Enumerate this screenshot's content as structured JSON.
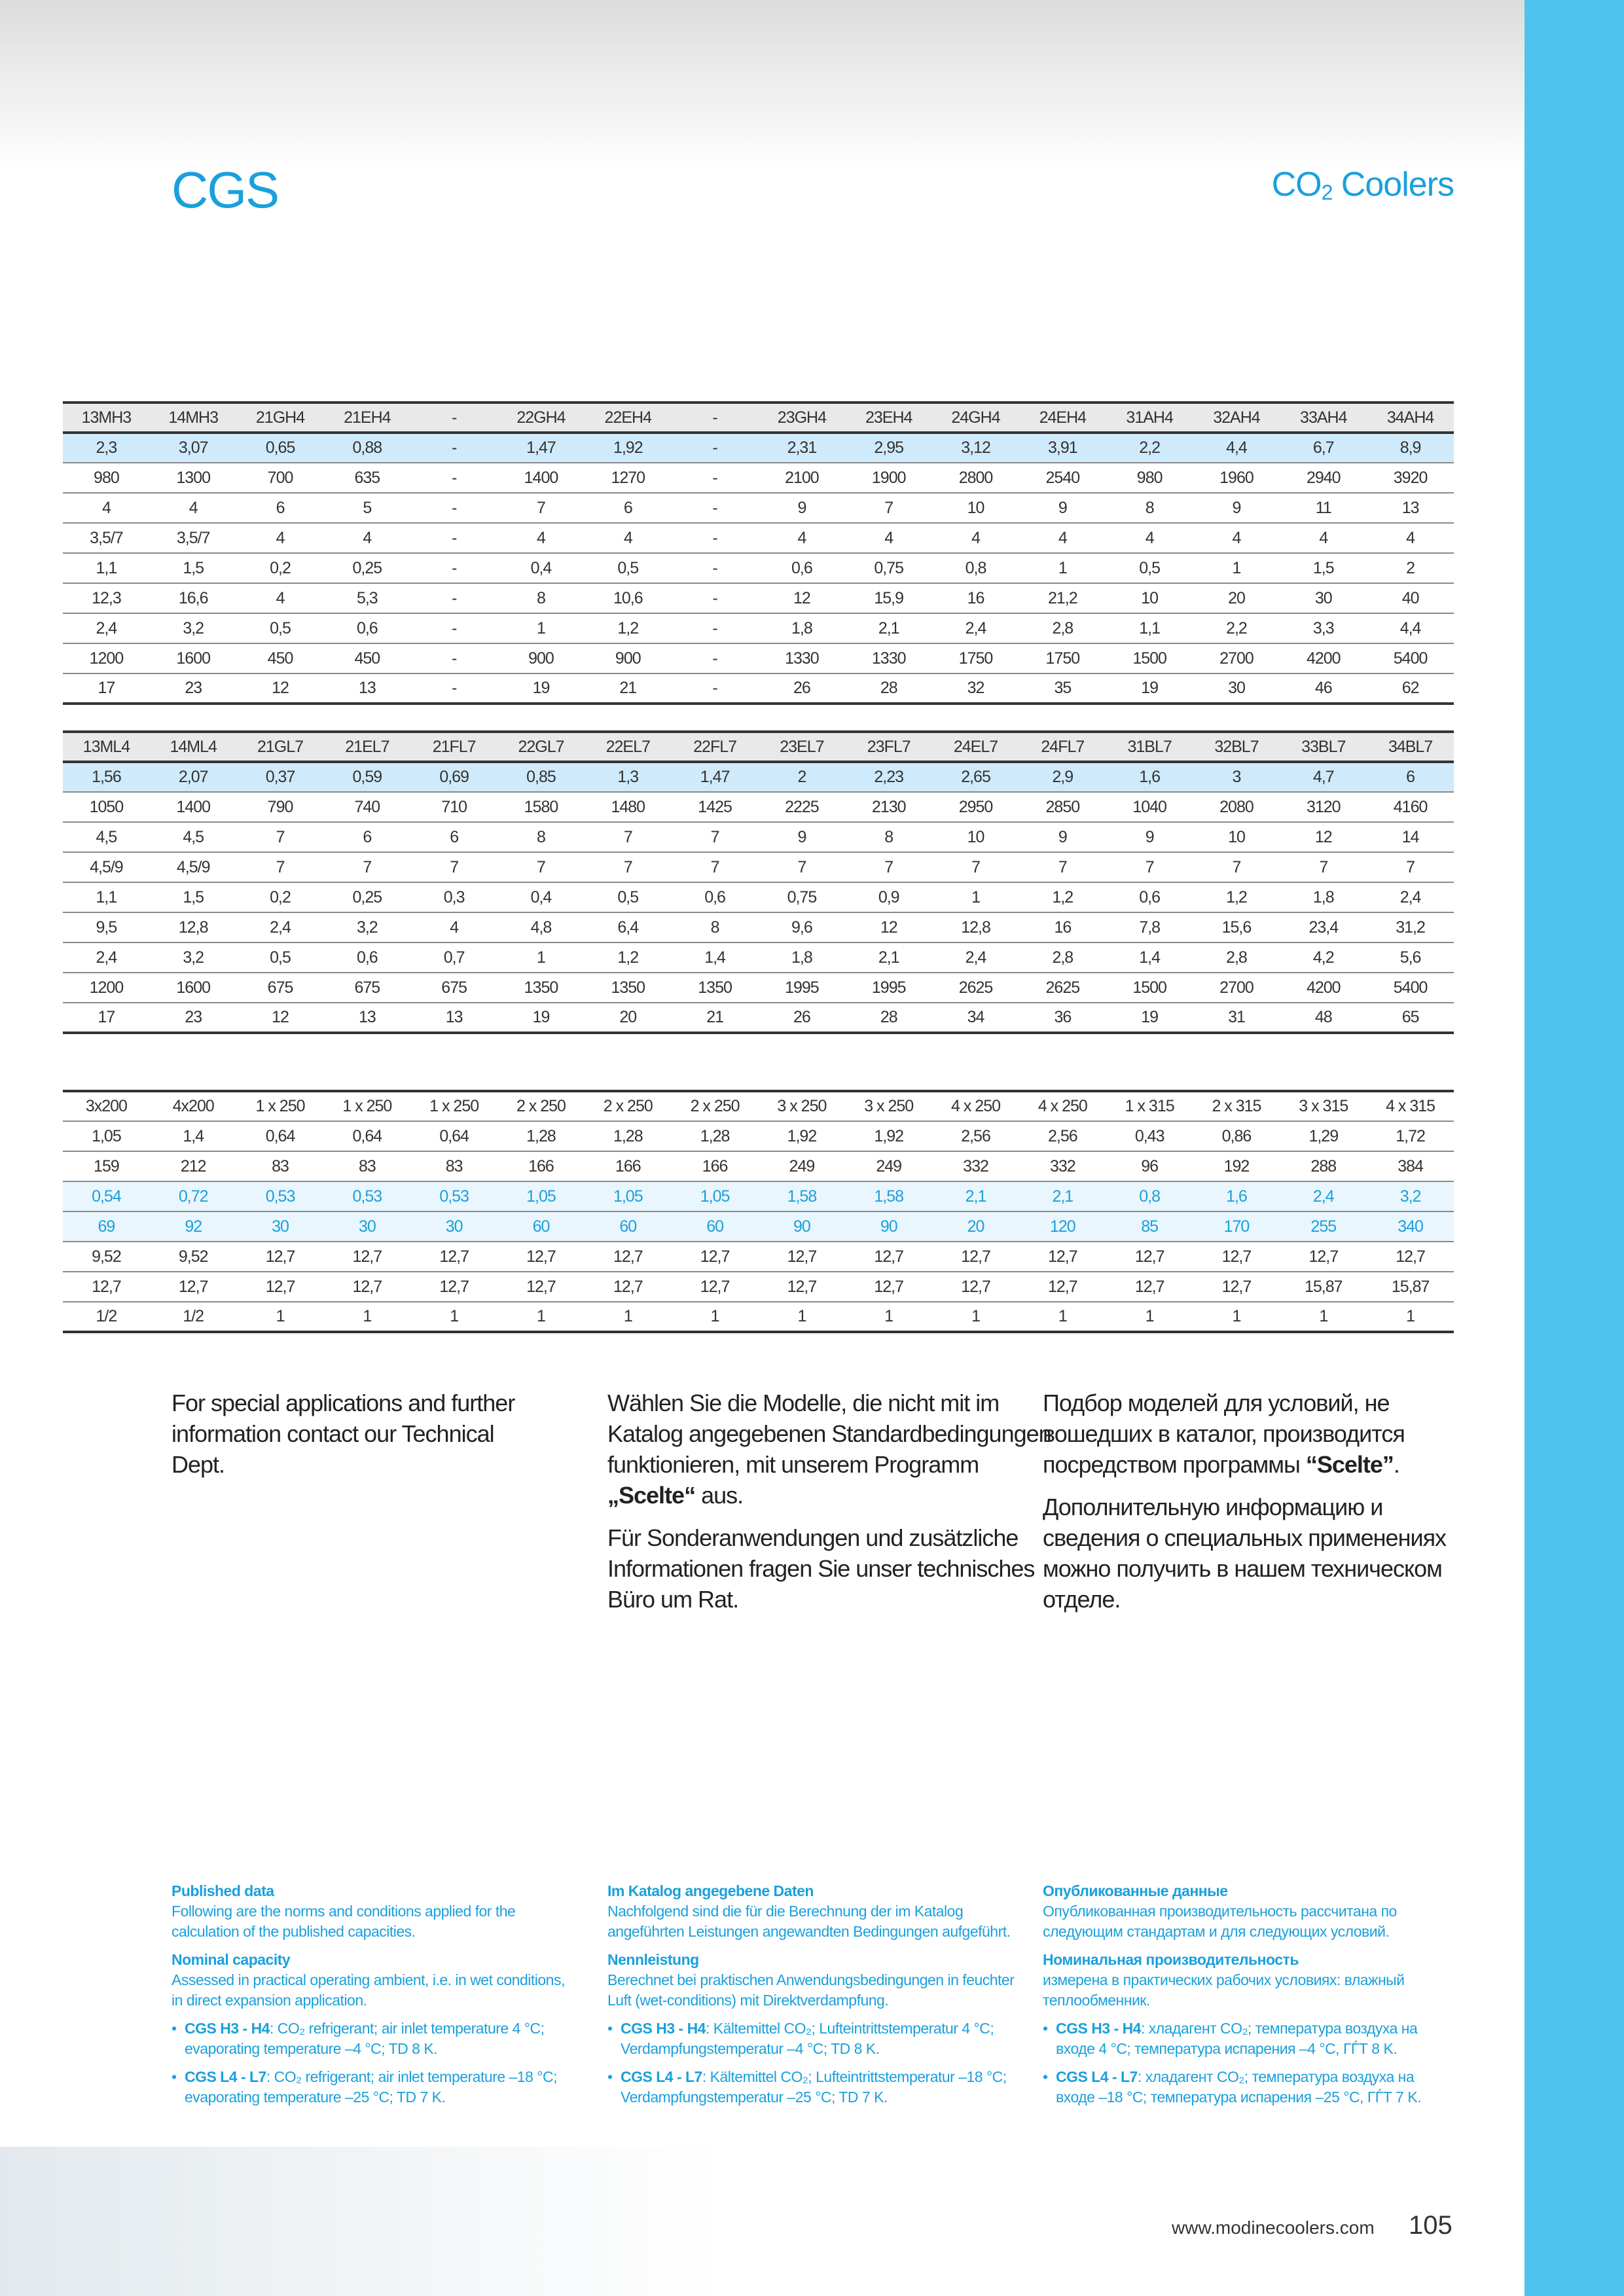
{
  "header": {
    "title": "CGS",
    "subtitle_main": "CO",
    "subtitle_sub": "2",
    "subtitle_rest": " Coolers"
  },
  "tables": [
    {
      "rows": [
        [
          "13MH3",
          "14MH3",
          "21GH4",
          "21EH4",
          "-",
          "22GH4",
          "22EH4",
          "-",
          "23GH4",
          "23EH4",
          "24GH4",
          "24EH4",
          "31AH4",
          "32AH4",
          "33AH4",
          "34AH4"
        ],
        [
          "2,3",
          "3,07",
          "0,65",
          "0,88",
          "-",
          "1,47",
          "1,92",
          "-",
          "2,31",
          "2,95",
          "3,12",
          "3,91",
          "2,2",
          "4,4",
          "6,7",
          "8,9"
        ],
        [
          "980",
          "1300",
          "700",
          "635",
          "-",
          "1400",
          "1270",
          "-",
          "2100",
          "1900",
          "2800",
          "2540",
          "980",
          "1960",
          "2940",
          "3920"
        ],
        [
          "4",
          "4",
          "6",
          "5",
          "-",
          "7",
          "6",
          "-",
          "9",
          "7",
          "10",
          "9",
          "8",
          "9",
          "11",
          "13"
        ],
        [
          "3,5/7",
          "3,5/7",
          "4",
          "4",
          "-",
          "4",
          "4",
          "-",
          "4",
          "4",
          "4",
          "4",
          "4",
          "4",
          "4",
          "4"
        ],
        [
          "1,1",
          "1,5",
          "0,2",
          "0,25",
          "-",
          "0,4",
          "0,5",
          "-",
          "0,6",
          "0,75",
          "0,8",
          "1",
          "0,5",
          "1",
          "1,5",
          "2"
        ],
        [
          "12,3",
          "16,6",
          "4",
          "5,3",
          "-",
          "8",
          "10,6",
          "-",
          "12",
          "15,9",
          "16",
          "21,2",
          "10",
          "20",
          "30",
          "40"
        ],
        [
          "2,4",
          "3,2",
          "0,5",
          "0,6",
          "-",
          "1",
          "1,2",
          "-",
          "1,8",
          "2,1",
          "2,4",
          "2,8",
          "1,1",
          "2,2",
          "3,3",
          "4,4"
        ],
        [
          "1200",
          "1600",
          "450",
          "450",
          "-",
          "900",
          "900",
          "-",
          "1330",
          "1330",
          "1750",
          "1750",
          "1500",
          "2700",
          "4200",
          "5400"
        ],
        [
          "17",
          "23",
          "12",
          "13",
          "-",
          "19",
          "21",
          "-",
          "26",
          "28",
          "32",
          "35",
          "19",
          "30",
          "46",
          "62"
        ]
      ],
      "styles": [
        "head",
        "hl",
        "",
        "",
        "",
        "",
        "",
        "",
        "",
        ""
      ]
    },
    {
      "rows": [
        [
          "13ML4",
          "14ML4",
          "21GL7",
          "21EL7",
          "21FL7",
          "22GL7",
          "22EL7",
          "22FL7",
          "23EL7",
          "23FL7",
          "24EL7",
          "24FL7",
          "31BL7",
          "32BL7",
          "33BL7",
          "34BL7"
        ],
        [
          "1,56",
          "2,07",
          "0,37",
          "0,59",
          "0,69",
          "0,85",
          "1,3",
          "1,47",
          "2",
          "2,23",
          "2,65",
          "2,9",
          "1,6",
          "3",
          "4,7",
          "6"
        ],
        [
          "1050",
          "1400",
          "790",
          "740",
          "710",
          "1580",
          "1480",
          "1425",
          "2225",
          "2130",
          "2950",
          "2850",
          "1040",
          "2080",
          "3120",
          "4160"
        ],
        [
          "4,5",
          "4,5",
          "7",
          "6",
          "6",
          "8",
          "7",
          "7",
          "9",
          "8",
          "10",
          "9",
          "9",
          "10",
          "12",
          "14"
        ],
        [
          "4,5/9",
          "4,5/9",
          "7",
          "7",
          "7",
          "7",
          "7",
          "7",
          "7",
          "7",
          "7",
          "7",
          "7",
          "7",
          "7",
          "7"
        ],
        [
          "1,1",
          "1,5",
          "0,2",
          "0,25",
          "0,3",
          "0,4",
          "0,5",
          "0,6",
          "0,75",
          "0,9",
          "1",
          "1,2",
          "0,6",
          "1,2",
          "1,8",
          "2,4"
        ],
        [
          "9,5",
          "12,8",
          "2,4",
          "3,2",
          "4",
          "4,8",
          "6,4",
          "8",
          "9,6",
          "12",
          "12,8",
          "16",
          "7,8",
          "15,6",
          "23,4",
          "31,2"
        ],
        [
          "2,4",
          "3,2",
          "0,5",
          "0,6",
          "0,7",
          "1",
          "1,2",
          "1,4",
          "1,8",
          "2,1",
          "2,4",
          "2,8",
          "1,4",
          "2,8",
          "4,2",
          "5,6"
        ],
        [
          "1200",
          "1600",
          "675",
          "675",
          "675",
          "1350",
          "1350",
          "1350",
          "1995",
          "1995",
          "2625",
          "2625",
          "1500",
          "2700",
          "4200",
          "5400"
        ],
        [
          "17",
          "23",
          "12",
          "13",
          "13",
          "19",
          "20",
          "21",
          "26",
          "28",
          "34",
          "36",
          "19",
          "31",
          "48",
          "65"
        ]
      ],
      "styles": [
        "head",
        "hl",
        "",
        "",
        "",
        "",
        "",
        "",
        "",
        ""
      ]
    },
    {
      "rows": [
        [
          "3x200",
          "4x200",
          "1 x 250",
          "1 x 250",
          "1 x 250",
          "2 x 250",
          "2 x 250",
          "2 x 250",
          "3 x 250",
          "3 x 250",
          "4 x 250",
          "4 x 250",
          "1 x 315",
          "2 x 315",
          "3 x 315",
          "4 x 315"
        ],
        [
          "1,05",
          "1,4",
          "0,64",
          "0,64",
          "0,64",
          "1,28",
          "1,28",
          "1,28",
          "1,92",
          "1,92",
          "2,56",
          "2,56",
          "0,43",
          "0,86",
          "1,29",
          "1,72"
        ],
        [
          "159",
          "212",
          "83",
          "83",
          "83",
          "166",
          "166",
          "166",
          "249",
          "249",
          "332",
          "332",
          "96",
          "192",
          "288",
          "384"
        ],
        [
          "0,54",
          "0,72",
          "0,53",
          "0,53",
          "0,53",
          "1,05",
          "1,05",
          "1,05",
          "1,58",
          "1,58",
          "2,1",
          "2,1",
          "0,8",
          "1,6",
          "2,4",
          "3,2"
        ],
        [
          "69",
          "92",
          "30",
          "30",
          "30",
          "60",
          "60",
          "60",
          "90",
          "90",
          "20",
          "120",
          "85",
          "170",
          "255",
          "340"
        ],
        [
          "9,52",
          "9,52",
          "12,7",
          "12,7",
          "12,7",
          "12,7",
          "12,7",
          "12,7",
          "12,7",
          "12,7",
          "12,7",
          "12,7",
          "12,7",
          "12,7",
          "12,7",
          "12,7"
        ],
        [
          "12,7",
          "12,7",
          "12,7",
          "12,7",
          "12,7",
          "12,7",
          "12,7",
          "12,7",
          "12,7",
          "12,7",
          "12,7",
          "12,7",
          "12,7",
          "12,7",
          "15,87",
          "15,87"
        ],
        [
          "1/2",
          "1/2",
          "1",
          "1",
          "1",
          "1",
          "1",
          "1",
          "1",
          "1",
          "1",
          "1",
          "1",
          "1",
          "1",
          "1"
        ]
      ],
      "styles": [
        "",
        "",
        "",
        "blue",
        "blue",
        "",
        "",
        ""
      ]
    }
  ],
  "info": {
    "en": {
      "p1": "For special applications and further information contact our Technical Dept."
    },
    "de": {
      "p1_a": "Wählen Sie die Modelle, die nicht mit im Katalog angegebenen Standardbedingungen funktionieren, mit unserem Programm ",
      "p1_b": "„Scelte“",
      "p1_c": " aus.",
      "p2": "Für Sonderanwendungen und zusätzliche Informationen fragen Sie unser technisches Büro um Rat."
    },
    "ru": {
      "p1_a": "Подбор моделей для условий, не вошедших в каталог, производится посредством программы ",
      "p1_b": "“Scelte”",
      "p1_c": ".",
      "p2": "Дополнительную информацию и сведения о специальных применениях можно получить в нашем техническом отделе."
    }
  },
  "notes": {
    "en": {
      "h1": "Published data",
      "t1": "Following are the norms and conditions applied for the calculation of the published capacities.",
      "h2": "Nominal capacity",
      "t2": "Assessed in practical operating ambient, i.e. in wet conditions, in direct expansion application.",
      "i1_model": "CGS H3 - H4",
      "i1_text": ": CO₂ refrigerant; air inlet temperature 4 °C; evaporating temperature –4 °C; TD 8 K.",
      "i2_model": "CGS L4 - L7",
      "i2_text": ": CO₂ refrigerant; air inlet temperature –18 °C; evaporating temperature –25 °C; TD 7 K."
    },
    "de": {
      "h1": "Im Katalog angegebene Daten",
      "t1": "Nachfolgend sind die für die Berechnung der im Katalog angeführten Leistungen angewandten Bedingungen aufgeführt.",
      "h2": "Nennleistung",
      "t2": "Berechnet bei praktischen Anwendungsbedingungen in feuchter Luft (wet-conditions) mit Direktverdampfung.",
      "i1_model": "CGS H3 - H4",
      "i1_text": ": Kältemittel CO₂; Lufteintrittstemperatur 4 °C; Verdampfungstemperatur –4 °C; TD 8 K.",
      "i2_model": "CGS L4 - L7",
      "i2_text": ": Kältemittel CO₂; Lufteintrittstemperatur –18 °C; Verdampfungstemperatur –25 °C; TD 7 K."
    },
    "ru": {
      "h1": "Опубликованные данные",
      "t1": "Опубликованная производительность рассчитана по следующим стандартам и для следующих условий.",
      "h2": "Номинальная производительность",
      "t2": "измерена в практических рабочих условиях: влажный теплообменник.",
      "i1_model": "CGS H3 - H4",
      "i1_text": ": хладагент CO₂; температура воздуха на входе 4 °C; температура испарения –4 °C, ГЃТ 8 K.",
      "i2_model": "CGS L4 - L7",
      "i2_text": ": хладагент CO₂; температура воздуха на входе –18 °C; температура испарения –25 °C, ГЃТ 7 K."
    }
  },
  "footer": {
    "url": "www.modinecoolers.com",
    "page": "105"
  },
  "colors": {
    "accent": "#1aa0dc",
    "stripe": "#4ec3ef",
    "highlight": "#cfeafb"
  }
}
